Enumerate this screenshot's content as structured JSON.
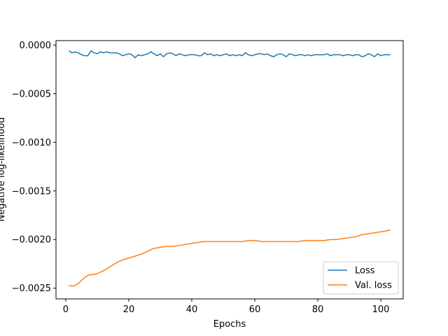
{
  "chart_data": {
    "type": "line",
    "title": "",
    "xlabel": "Epochs",
    "ylabel": "Negative log-likelihood",
    "xlim": [
      -3.1,
      107.1
    ],
    "ylim": [
      -0.00261,
      4.55e-05
    ],
    "xticks": [
      {
        "value": 0,
        "label": "0"
      },
      {
        "value": 20,
        "label": "20"
      },
      {
        "value": 40,
        "label": "40"
      },
      {
        "value": 60,
        "label": "60"
      },
      {
        "value": 80,
        "label": "80"
      },
      {
        "value": 100,
        "label": "100"
      }
    ],
    "yticks": [
      {
        "value": 0.0,
        "label": "0.0000"
      },
      {
        "value": -0.0005,
        "label": "−0.0005"
      },
      {
        "value": -0.001,
        "label": "−0.0010"
      },
      {
        "value": -0.0015,
        "label": "−0.0015"
      },
      {
        "value": -0.002,
        "label": "−0.0020"
      },
      {
        "value": -0.0025,
        "label": "−0.0025"
      }
    ],
    "legend_position": "lower-right",
    "series": [
      {
        "name": "Loss",
        "color": "#1f77b4",
        "x": [
          1,
          2,
          3,
          4,
          5,
          6,
          7,
          8,
          9,
          10,
          11,
          12,
          13,
          14,
          15,
          16,
          17,
          18,
          19,
          20,
          21,
          22,
          23,
          24,
          25,
          26,
          27,
          28,
          29,
          30,
          31,
          32,
          33,
          34,
          35,
          36,
          37,
          38,
          39,
          40,
          41,
          42,
          43,
          44,
          45,
          46,
          47,
          48,
          49,
          50,
          51,
          52,
          53,
          54,
          55,
          56,
          57,
          58,
          59,
          60,
          61,
          62,
          63,
          64,
          65,
          66,
          67,
          68,
          69,
          70,
          71,
          72,
          73,
          74,
          75,
          76,
          77,
          78,
          79,
          80,
          81,
          82,
          83,
          84,
          85,
          86,
          87,
          88,
          89,
          90,
          91,
          92,
          93,
          94,
          95,
          96,
          97,
          98,
          99,
          100,
          101,
          102,
          103
        ],
        "y": [
          -6e-05,
          -8e-05,
          -7e-05,
          -8e-05,
          -0.0001,
          -0.00011,
          -0.00011,
          -6e-05,
          -8e-05,
          -9e-05,
          -7e-05,
          -8e-05,
          -7e-05,
          -8e-05,
          -8e-05,
          -8e-05,
          -9e-05,
          -0.00011,
          -0.0001,
          -9e-05,
          -0.0001,
          -0.00013,
          -0.0001,
          -0.00011,
          -0.0001,
          -9e-05,
          -7e-05,
          -9e-05,
          -0.00011,
          -9e-05,
          -0.00012,
          -9e-05,
          -8e-05,
          -9e-05,
          -0.00011,
          -9e-05,
          -0.0001,
          -0.00011,
          -0.0001,
          -0.0001,
          -0.0001,
          -0.00011,
          -0.00011,
          -8e-05,
          -0.0001,
          -9e-05,
          -0.00011,
          -0.0001,
          -0.00011,
          -0.0001,
          -9e-05,
          -0.00011,
          -0.0001,
          -0.00011,
          -0.0001,
          -0.00011,
          -8e-05,
          -0.0001,
          -0.00011,
          -0.0001,
          -9e-05,
          -9e-05,
          -0.0001,
          -9e-05,
          -0.00011,
          -0.00012,
          -0.0001,
          -9e-05,
          -0.0001,
          -0.00012,
          -9e-05,
          -0.0001,
          -0.00011,
          -0.0001,
          -0.0001,
          -0.00011,
          -0.0001,
          -0.00011,
          -0.0001,
          -0.0001,
          -0.0001,
          -0.0001,
          -9e-05,
          -0.00011,
          -0.0001,
          -0.0001,
          -0.0001,
          -0.00011,
          -0.0001,
          -0.0001,
          -0.00011,
          -0.0001,
          -0.0001,
          -0.00012,
          -0.00011,
          -9e-05,
          -0.0001,
          -0.00012,
          -9e-05,
          -0.00011,
          -0.0001,
          -0.0001,
          -0.0001
        ]
      },
      {
        "name": "Val. loss",
        "color": "#ff7f0e",
        "x": [
          1,
          2,
          3,
          4,
          5,
          6,
          7,
          8,
          9,
          10,
          12,
          14,
          16,
          18,
          20,
          22,
          24,
          26,
          28,
          30,
          32,
          34,
          36,
          38,
          40,
          42,
          44,
          46,
          48,
          50,
          52,
          54,
          56,
          58,
          60,
          62,
          64,
          66,
          68,
          70,
          72,
          74,
          76,
          78,
          80,
          82,
          84,
          86,
          88,
          90,
          92,
          94,
          96,
          98,
          100,
          102,
          103
        ],
        "y": [
          -0.00247,
          -0.00248,
          -0.00247,
          -0.00245,
          -0.00242,
          -0.00239,
          -0.00237,
          -0.00236,
          -0.00236,
          -0.00235,
          -0.00232,
          -0.00228,
          -0.00224,
          -0.00221,
          -0.00219,
          -0.00217,
          -0.00215,
          -0.00212,
          -0.00209,
          -0.00208,
          -0.00207,
          -0.00207,
          -0.00206,
          -0.00205,
          -0.00204,
          -0.00203,
          -0.00202,
          -0.00202,
          -0.00202,
          -0.00202,
          -0.00202,
          -0.00202,
          -0.00202,
          -0.00201,
          -0.00201,
          -0.00202,
          -0.00202,
          -0.00202,
          -0.00202,
          -0.00202,
          -0.00202,
          -0.00202,
          -0.00201,
          -0.00201,
          -0.00201,
          -0.00201,
          -0.002,
          -0.002,
          -0.00199,
          -0.00198,
          -0.00197,
          -0.00195,
          -0.00194,
          -0.00193,
          -0.00192,
          -0.00191,
          -0.0019
        ]
      }
    ]
  }
}
